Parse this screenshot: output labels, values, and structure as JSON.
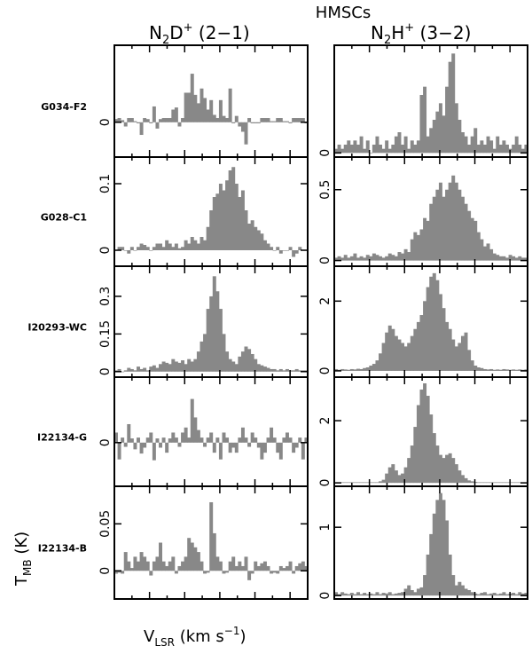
{
  "figure": {
    "title": "HMSCs",
    "col_titles": [
      {
        "base": "N",
        "sub1": "2",
        "mid": "D",
        "sup": "+",
        "trans": " (2−1)"
      },
      {
        "base": "N",
        "sub1": "2",
        "mid": "H",
        "sup": "+",
        "trans": " (3−2)"
      }
    ],
    "xlabel": {
      "base": "V",
      "sub": "LSR",
      "rest": " (km s",
      "sup": "−1",
      "end": ")"
    },
    "ylabel": {
      "base": "T",
      "sub": "MB",
      "rest": " (K)"
    },
    "bar_color": "#888888"
  },
  "chart_data": [
    {
      "type": "bar",
      "source": "G034-F2",
      "molecule": "N2D+ (2-1)",
      "ylim": [
        -0.033,
        0.073
      ],
      "yticks": [
        {
          "value": 0,
          "label": "0"
        }
      ],
      "values": [
        0.003,
        0.004,
        0.002,
        -0.004,
        0.004,
        0.004,
        0.001,
        -0.001,
        -0.012,
        0.004,
        0.003,
        -0.001,
        0.015,
        -0.006,
        0.003,
        0.004,
        0.004,
        0.004,
        0.012,
        0.014,
        -0.004,
        0.004,
        0.028,
        0.028,
        0.046,
        0.026,
        0.018,
        0.032,
        0.023,
        0.012,
        0.021,
        0.007,
        0.004,
        0.021,
        0.006,
        0.004,
        0.032,
        -0.001,
        0.006,
        -0.004,
        -0.009,
        -0.021,
        0.004,
        -0.001,
        -0.001,
        -0.001,
        0.004,
        0.004,
        0.004,
        0.001,
        0.001,
        0.004,
        0.004,
        0.001,
        0.001,
        -0.001,
        0.004,
        0.004,
        0.004,
        0.004,
        -0.001
      ]
    },
    {
      "type": "bar",
      "source": "G034-F2",
      "molecule": "N2H+ (3-2)",
      "ylim": [
        -0.05,
        1.3
      ],
      "yticks": [
        {
          "value": 0,
          "label": "0"
        }
      ],
      "values": [
        0.05,
        0.1,
        0.05,
        0.1,
        0.15,
        0.1,
        0.15,
        0.1,
        0.2,
        0.05,
        0.15,
        0.0,
        0.1,
        0.2,
        0.1,
        0.05,
        0.15,
        0.05,
        0.1,
        0.2,
        0.25,
        0.1,
        0.2,
        0.05,
        0.15,
        0.1,
        0.15,
        0.7,
        0.8,
        0.2,
        0.3,
        0.4,
        0.5,
        0.6,
        0.45,
        0.8,
        1.1,
        1.2,
        0.6,
        0.4,
        0.25,
        0.2,
        0.1,
        0.2,
        0.3,
        0.1,
        0.15,
        0.1,
        0.2,
        0.15,
        0.05,
        0.2,
        0.1,
        0.15,
        0.1,
        0.05,
        0.1,
        0.2,
        0.1,
        0.05,
        0.1
      ]
    },
    {
      "type": "bar",
      "source": "G028-C1",
      "molecule": "N2D+ (2-1)",
      "ylim": [
        -0.024,
        0.14
      ],
      "yticks": [
        {
          "value": 0,
          "label": "0"
        },
        {
          "value": 0.1,
          "label": "0.1"
        }
      ],
      "values": [
        0.0,
        0.005,
        0.005,
        0.0,
        -0.005,
        0.005,
        0.0,
        0.005,
        0.01,
        0.008,
        0.005,
        0.0,
        0.005,
        0.01,
        0.01,
        0.005,
        0.015,
        0.01,
        0.005,
        0.01,
        0.003,
        0.005,
        0.015,
        0.01,
        0.02,
        0.015,
        0.01,
        0.02,
        0.015,
        0.035,
        0.06,
        0.08,
        0.085,
        0.1,
        0.09,
        0.105,
        0.12,
        0.125,
        0.1,
        0.08,
        0.09,
        0.06,
        0.04,
        0.045,
        0.035,
        0.03,
        0.025,
        0.015,
        0.01,
        0.005,
        0.0,
        0.005,
        -0.005,
        0.0,
        0.0,
        0.005,
        -0.01,
        -0.005,
        0.005,
        0.0,
        0.0
      ]
    },
    {
      "type": "bar",
      "source": "G028-C1",
      "molecule": "N2H+ (3-2)",
      "ylim": [
        -0.04,
        0.73
      ],
      "yticks": [
        {
          "value": 0,
          "label": "0"
        },
        {
          "value": 0.5,
          "label": "0.5"
        }
      ],
      "values": [
        0.02,
        0.03,
        0.02,
        0.04,
        0.02,
        0.03,
        0.05,
        0.02,
        0.03,
        0.02,
        0.04,
        0.03,
        0.05,
        0.04,
        0.03,
        0.02,
        0.03,
        0.05,
        0.04,
        0.03,
        0.06,
        0.05,
        0.08,
        0.06,
        0.15,
        0.2,
        0.18,
        0.22,
        0.3,
        0.28,
        0.4,
        0.45,
        0.5,
        0.55,
        0.45,
        0.5,
        0.55,
        0.6,
        0.55,
        0.5,
        0.45,
        0.4,
        0.35,
        0.3,
        0.28,
        0.2,
        0.15,
        0.1,
        0.12,
        0.08,
        0.05,
        0.04,
        0.03,
        0.03,
        0.02,
        0.04,
        0.03,
        0.02,
        0.03,
        0.02,
        0.02
      ]
    },
    {
      "type": "bar",
      "source": "I20293-WC",
      "molecule": "N2D+ (2-1)",
      "ylim": [
        -0.022,
        0.42
      ],
      "yticks": [
        {
          "value": 0,
          "label": "0"
        },
        {
          "value": 0.15,
          "label": "0.15"
        },
        {
          "value": 0.3,
          "label": "0.3"
        }
      ],
      "values": [
        0.005,
        0.01,
        0.0,
        0.005,
        0.015,
        0.01,
        0.005,
        0.02,
        0.01,
        0.015,
        0.005,
        0.02,
        0.025,
        0.015,
        0.03,
        0.04,
        0.035,
        0.03,
        0.05,
        0.04,
        0.035,
        0.045,
        0.03,
        0.05,
        0.04,
        0.05,
        0.08,
        0.12,
        0.15,
        0.25,
        0.3,
        0.38,
        0.32,
        0.25,
        0.15,
        0.08,
        0.05,
        0.04,
        0.03,
        0.06,
        0.08,
        0.1,
        0.09,
        0.07,
        0.05,
        0.03,
        0.025,
        0.02,
        0.015,
        0.01,
        0.01,
        0.005,
        0.01,
        0.005,
        0.01,
        0.005,
        0.005,
        0.01,
        0.005,
        0.005,
        0.005
      ]
    },
    {
      "type": "bar",
      "source": "I20293-WC",
      "molecule": "N2H+ (3-2)",
      "ylim": [
        -0.18,
        3.0
      ],
      "yticks": [
        {
          "value": 0,
          "label": "0"
        },
        {
          "value": 2,
          "label": "2"
        }
      ],
      "values": [
        0.05,
        0.03,
        0.05,
        0.04,
        0.03,
        0.05,
        0.04,
        0.06,
        0.05,
        0.08,
        0.1,
        0.15,
        0.2,
        0.3,
        0.5,
        0.8,
        1.1,
        1.3,
        1.2,
        1.0,
        0.9,
        0.8,
        0.7,
        0.8,
        1.0,
        1.2,
        1.4,
        1.6,
        2.0,
        2.4,
        2.7,
        2.8,
        2.6,
        2.2,
        1.8,
        1.4,
        1.2,
        0.9,
        0.7,
        0.8,
        1.0,
        1.1,
        0.6,
        0.3,
        0.15,
        0.1,
        0.08,
        0.05,
        0.04,
        0.05,
        0.03,
        0.04,
        0.03,
        0.05,
        0.04,
        0.03,
        0.04,
        0.03,
        0.04,
        0.03,
        0.04
      ]
    },
    {
      "type": "bar",
      "source": "I22134-G",
      "molecule": "N2D+ (2-1)",
      "ylim": [
        -0.052,
        0.078
      ],
      "yticks": [
        {
          "value": 0,
          "label": "0"
        }
      ],
      "values": [
        0.012,
        -0.02,
        0.006,
        -0.005,
        0.022,
        0.005,
        -0.008,
        0.006,
        -0.013,
        -0.006,
        0.006,
        0.012,
        -0.021,
        0.005,
        -0.006,
        0.006,
        -0.012,
        0.005,
        0.012,
        0.006,
        -0.005,
        0.012,
        0.018,
        0.006,
        0.052,
        0.03,
        0.015,
        0.006,
        -0.005,
        0.006,
        0.012,
        -0.012,
        0.006,
        -0.02,
        0.012,
        0.006,
        -0.012,
        -0.006,
        -0.012,
        0.006,
        0.018,
        0.006,
        -0.005,
        0.012,
        0.006,
        -0.006,
        -0.02,
        -0.012,
        0.006,
        0.018,
        0.006,
        -0.012,
        -0.02,
        0.006,
        0.012,
        0.006,
        -0.012,
        -0.006,
        0.006,
        -0.02,
        0.006
      ]
    },
    {
      "type": "bar",
      "source": "I22134-G",
      "molecule": "N2H+ (3-2)",
      "ylim": [
        -0.11,
        3.4
      ],
      "yticks": [
        {
          "value": 0,
          "label": "0"
        },
        {
          "value": 2,
          "label": "2"
        }
      ],
      "values": [
        0.02,
        0.02,
        0.02,
        0.02,
        0.02,
        0.02,
        0.02,
        0.02,
        0.02,
        0.02,
        0.02,
        0.02,
        0.02,
        0.02,
        0.05,
        0.1,
        0.3,
        0.5,
        0.6,
        0.4,
        0.25,
        0.3,
        0.5,
        0.8,
        1.2,
        1.8,
        2.5,
        3.0,
        3.2,
        2.8,
        2.2,
        1.6,
        1.2,
        0.9,
        0.8,
        0.9,
        0.95,
        0.8,
        0.6,
        0.4,
        0.25,
        0.15,
        0.08,
        0.05,
        0.03,
        0.02,
        0.02,
        0.02,
        0.02,
        0.02,
        0.02,
        0.02,
        0.02,
        0.02,
        0.02,
        0.02,
        0.02,
        0.02,
        0.02,
        0.02,
        0.02
      ]
    },
    {
      "type": "bar",
      "source": "I22134-B",
      "molecule": "N2D+ (2-1)",
      "ylim": [
        -0.03,
        0.09
      ],
      "yticks": [
        {
          "value": 0,
          "label": "0"
        },
        {
          "value": 0.05,
          "label": "0.05"
        }
      ],
      "values": [
        -0.003,
        -0.002,
        -0.003,
        0.02,
        0.01,
        0.003,
        0.015,
        0.01,
        0.02,
        0.015,
        0.01,
        -0.005,
        0.01,
        0.015,
        0.03,
        0.01,
        0.005,
        0.01,
        0.015,
        -0.003,
        0.005,
        0.01,
        0.015,
        0.035,
        0.03,
        0.025,
        0.02,
        0.01,
        -0.003,
        -0.002,
        0.073,
        0.04,
        0.015,
        0.01,
        -0.003,
        -0.002,
        0.01,
        0.015,
        0.005,
        0.01,
        0.005,
        0.015,
        -0.01,
        -0.003,
        0.01,
        0.005,
        0.008,
        0.01,
        0.005,
        -0.003,
        -0.002,
        -0.003,
        0.005,
        0.003,
        0.005,
        0.01,
        -0.003,
        0.005,
        0.008,
        0.01,
        0.005
      ]
    },
    {
      "type": "bar",
      "source": "I22134-B",
      "molecule": "N2H+ (3-2)",
      "ylim": [
        -0.05,
        1.6
      ],
      "yticks": [
        {
          "value": 0,
          "label": "0"
        },
        {
          "value": 1,
          "label": "1"
        }
      ],
      "values": [
        0.05,
        0.02,
        0.05,
        0.03,
        0.02,
        0.04,
        0.02,
        0.05,
        0.02,
        0.04,
        0.02,
        0.03,
        0.02,
        0.05,
        0.02,
        0.04,
        0.03,
        0.05,
        0.02,
        0.03,
        0.04,
        0.05,
        0.1,
        0.15,
        0.08,
        0.05,
        0.1,
        0.12,
        0.3,
        0.6,
        0.9,
        1.2,
        1.4,
        1.5,
        1.4,
        1.1,
        0.6,
        0.3,
        0.15,
        0.2,
        0.15,
        0.1,
        0.08,
        0.05,
        0.03,
        0.02,
        0.04,
        0.05,
        0.02,
        0.03,
        0.04,
        0.02,
        0.03,
        0.05,
        0.02,
        0.03,
        0.04,
        0.02,
        0.05,
        0.03,
        0.04
      ]
    }
  ]
}
